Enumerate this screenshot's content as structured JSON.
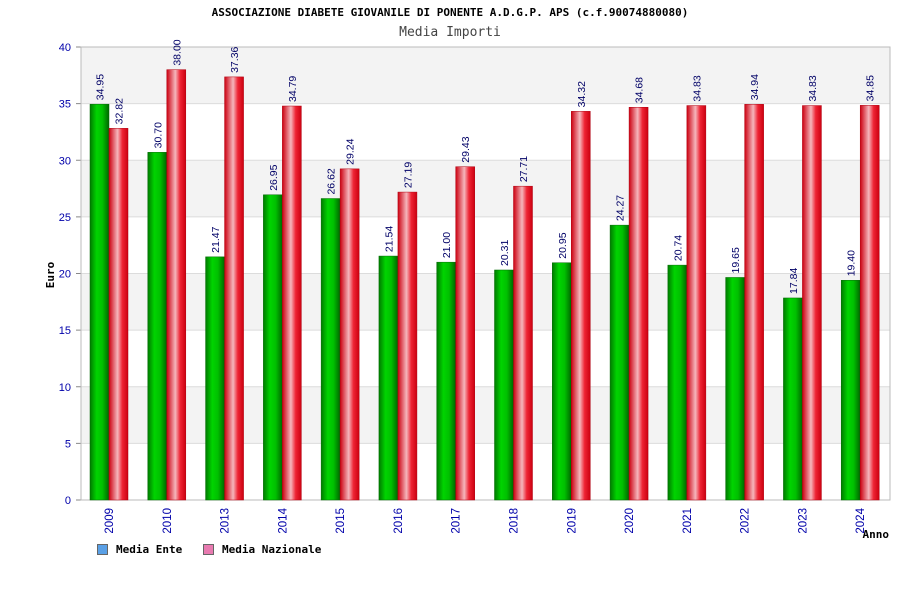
{
  "title": "ASSOCIAZIONE DIABETE GIOVANILE DI PONENTE A.D.G.P. APS (c.f.90074880080)",
  "subtitle": "Media Importi",
  "colors": {
    "legend_ente": "#5aa0e6",
    "legend_nazionale": "#e87ab0",
    "bar_ente": "#00b400",
    "bar_nazionale": "#ee1c2c",
    "axis_text": "#0000aa",
    "label_text": "#000066"
  },
  "chart_data": {
    "type": "bar",
    "title": "Media Importi",
    "xlabel": "Anno",
    "ylabel": "Euro",
    "ylim": [
      0,
      40
    ],
    "yticks": [
      0,
      5,
      10,
      15,
      20,
      25,
      30,
      35,
      40
    ],
    "grid": true,
    "legend_position": "bottom-left",
    "categories": [
      "2009",
      "2010",
      "2013",
      "2014",
      "2015",
      "2016",
      "2017",
      "2018",
      "2019",
      "2020",
      "2021",
      "2022",
      "2023",
      "2024"
    ],
    "series": [
      {
        "name": "Media Ente",
        "values": [
          34.95,
          30.7,
          21.47,
          26.95,
          26.62,
          21.54,
          21.0,
          20.31,
          20.95,
          24.27,
          20.74,
          19.65,
          17.84,
          19.4
        ],
        "labels": [
          "34.95",
          "30.70",
          "21.47",
          "26.95",
          "26.62",
          "21.54",
          "21.00",
          "20.31",
          "20.95",
          "24.27",
          "20.74",
          "19.65",
          "17.84",
          "19.40"
        ]
      },
      {
        "name": "Media Nazionale",
        "values": [
          32.82,
          38.0,
          37.36,
          34.79,
          29.24,
          27.19,
          29.43,
          27.71,
          34.32,
          34.68,
          34.83,
          34.94,
          34.83,
          34.85
        ],
        "labels": [
          "32.82",
          "38.00",
          "37.36",
          "34.79",
          "29.24",
          "27.19",
          "29.43",
          "27.71",
          "34.32",
          "34.68",
          "34.83",
          "34.94",
          "34.83",
          "34.85"
        ]
      }
    ]
  }
}
